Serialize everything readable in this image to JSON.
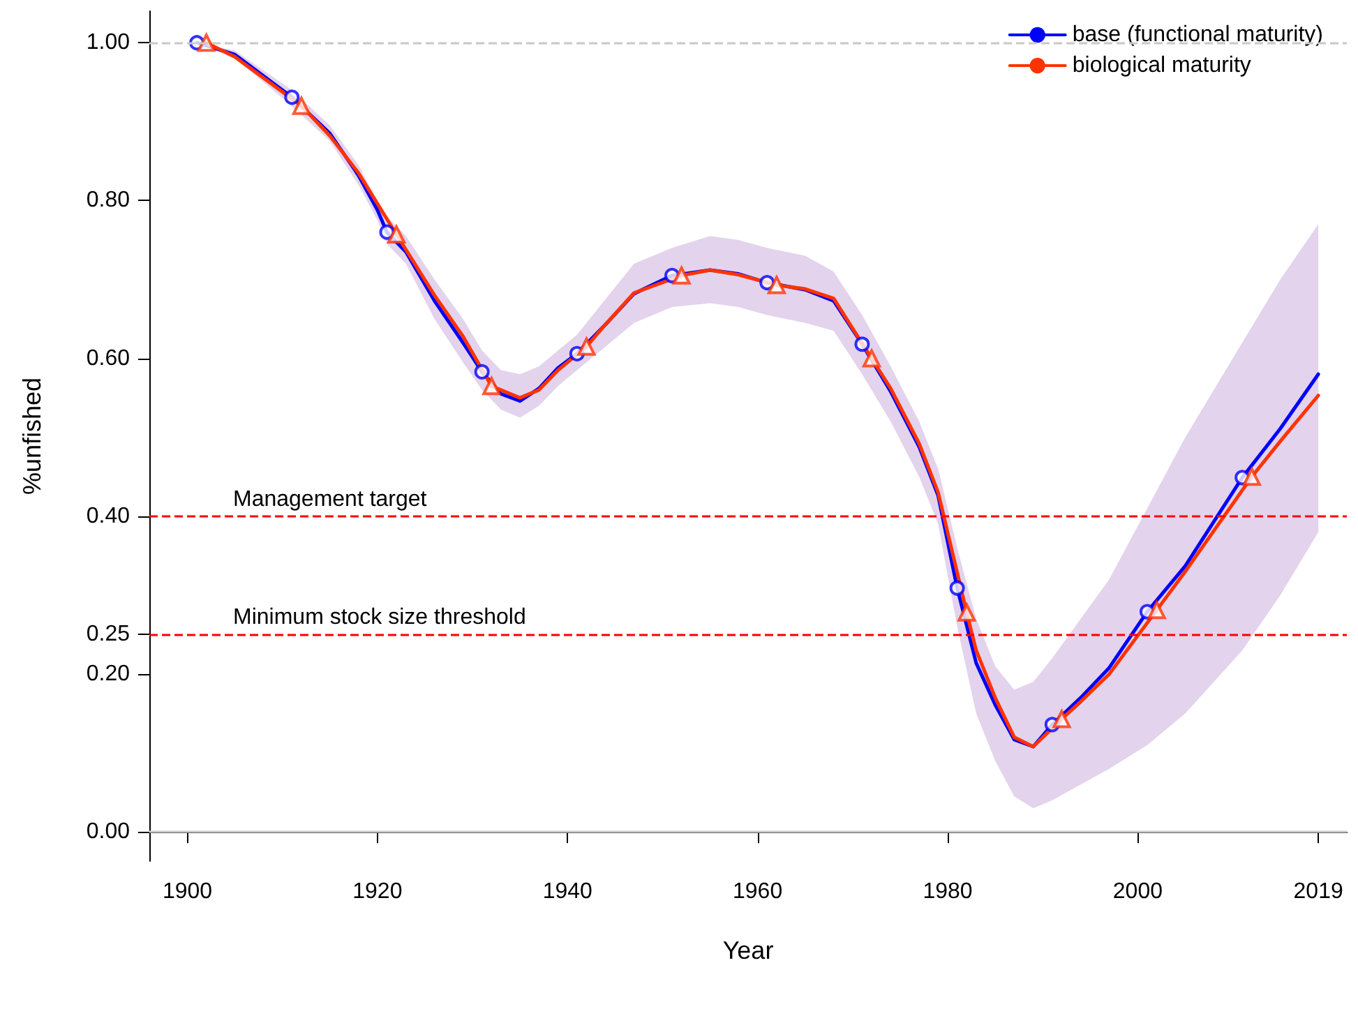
{
  "chart_data": {
    "type": "line",
    "xlabel": "Year",
    "ylabel": "%unfished",
    "xlim": [
      1896,
      2022
    ],
    "xticks": [
      1900,
      1920,
      1940,
      1960,
      1980,
      2000,
      2019
    ],
    "ylim": [
      -0.037,
      1.04
    ],
    "yticks": [
      {
        "value": 0,
        "label": "0.00"
      },
      {
        "value": 0.2,
        "label": "0.20"
      },
      {
        "value": 0.25,
        "label": "0.25"
      },
      {
        "value": 0.4,
        "label": "0.40"
      },
      {
        "value": 0.6,
        "label": "0.60"
      },
      {
        "value": 0.8,
        "label": "0.80"
      },
      {
        "value": 1,
        "label": "1.00"
      }
    ],
    "grid": false,
    "legend": "top right",
    "series": [
      {
        "name": "base (functional maturity)",
        "color": "#0000ff",
        "line_style": "solid",
        "x": [
          1901,
          1905,
          1911,
          1915,
          1918,
          1920,
          1921,
          1923,
          1926,
          1929,
          1931,
          1933,
          1935,
          1937,
          1939,
          1941,
          1944,
          1947,
          1951,
          1955,
          1958,
          1961,
          1965,
          1968,
          1971,
          1974,
          1977,
          1979,
          1981,
          1983,
          1985,
          1987,
          1989,
          1991,
          1994,
          1997,
          2001,
          2005,
          2011,
          2015,
          2019
        ],
        "values": [
          1.0,
          0.985,
          0.931,
          0.885,
          0.832,
          0.788,
          0.76,
          0.735,
          0.673,
          0.62,
          0.583,
          0.555,
          0.546,
          0.562,
          0.588,
          0.606,
          0.643,
          0.682,
          0.705,
          0.712,
          0.707,
          0.696,
          0.687,
          0.673,
          0.618,
          0.558,
          0.488,
          0.426,
          0.309,
          0.214,
          0.161,
          0.117,
          0.108,
          0.136,
          0.17,
          0.208,
          0.279,
          0.337,
          0.449,
          0.511,
          0.58
        ],
        "upper": [
          1.0,
          0.99,
          0.94,
          0.895,
          0.845,
          0.8,
          0.78,
          0.755,
          0.7,
          0.65,
          0.61,
          0.585,
          0.58,
          0.59,
          0.61,
          0.63,
          0.675,
          0.72,
          0.74,
          0.755,
          0.75,
          0.74,
          0.73,
          0.71,
          0.655,
          0.59,
          0.52,
          0.46,
          0.36,
          0.27,
          0.21,
          0.18,
          0.19,
          0.22,
          0.27,
          0.32,
          0.41,
          0.5,
          0.62,
          0.7,
          0.77
        ],
        "lower": [
          1.0,
          0.98,
          0.92,
          0.875,
          0.82,
          0.775,
          0.745,
          0.72,
          0.65,
          0.595,
          0.56,
          0.535,
          0.525,
          0.54,
          0.565,
          0.585,
          0.615,
          0.645,
          0.665,
          0.67,
          0.665,
          0.655,
          0.645,
          0.635,
          0.58,
          0.52,
          0.45,
          0.39,
          0.26,
          0.15,
          0.09,
          0.045,
          0.03,
          0.04,
          0.06,
          0.08,
          0.11,
          0.15,
          0.23,
          0.3,
          0.38
        ]
      },
      {
        "name": "biological maturity",
        "color": "#ff3300",
        "line_style": "solid",
        "x": [
          1902,
          1905,
          1912,
          1915,
          1918,
          1922,
          1926,
          1929,
          1932,
          1935,
          1937,
          1939,
          1942,
          1944,
          1947,
          1952,
          1955,
          1958,
          1962,
          1965,
          1968,
          1972,
          1974,
          1977,
          1979,
          1982,
          1983,
          1985,
          1987,
          1989,
          1992,
          1994,
          1997,
          2002,
          2005,
          2012,
          2015,
          2019
        ],
        "values": [
          1.0,
          0.982,
          0.92,
          0.882,
          0.835,
          0.757,
          0.68,
          0.628,
          0.565,
          0.55,
          0.56,
          0.585,
          0.615,
          0.643,
          0.683,
          0.705,
          0.712,
          0.706,
          0.693,
          0.688,
          0.676,
          0.6,
          0.562,
          0.492,
          0.43,
          0.278,
          0.23,
          0.17,
          0.12,
          0.108,
          0.143,
          0.165,
          0.2,
          0.281,
          0.33,
          0.45,
          0.495,
          0.553
        ]
      },
      {
        "type": "scatter",
        "color": "#0000ff",
        "marker": "circle",
        "x": [
          1901,
          1911,
          1921,
          1931,
          1941,
          1951,
          1961,
          1971,
          1981,
          1991,
          2001,
          2011
        ],
        "values": [
          1.0,
          0.931,
          0.76,
          0.583,
          0.606,
          0.705,
          0.696,
          0.618,
          0.309,
          0.136,
          0.279,
          0.449
        ]
      },
      {
        "type": "scatter",
        "color": "#ff3300",
        "marker": "triangle",
        "x": [
          1902,
          1912,
          1922,
          1932,
          1942,
          1952,
          1962,
          1972,
          1982,
          1992,
          2002,
          2012
        ],
        "values": [
          1.0,
          0.92,
          0.757,
          0.565,
          0.615,
          0.705,
          0.693,
          0.6,
          0.278,
          0.143,
          0.281,
          0.45
        ]
      }
    ],
    "ref_lines": [
      {
        "axis": "y",
        "value": 1,
        "color": "#c8c8c8",
        "line_style": "dashed"
      },
      {
        "axis": "y",
        "value": 0,
        "color": "#c8c8c8",
        "line_style": "solid"
      },
      {
        "axis": "y",
        "value": 0.4,
        "color": "#ff0000",
        "line_style": "dashed",
        "label": "Management target"
      },
      {
        "axis": "y",
        "value": 0.25,
        "color": "#ff0000",
        "line_style": "dashed",
        "label": "Minimum stock size threshold"
      }
    ]
  }
}
